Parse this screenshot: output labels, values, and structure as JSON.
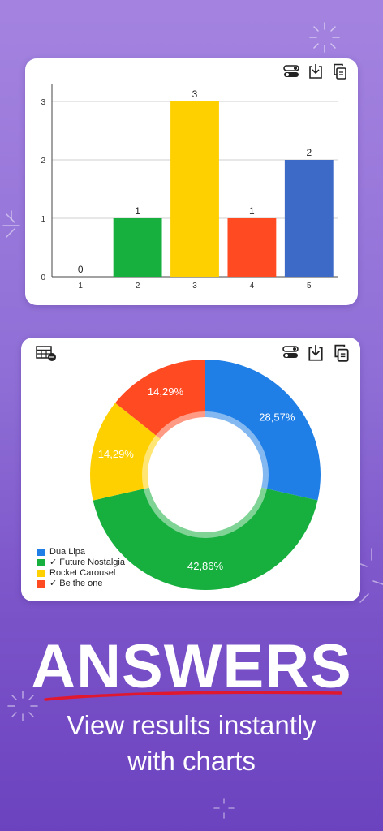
{
  "bar_card": {
    "toolbar_icons": [
      "toggle-icon",
      "download-icon",
      "copy-icon"
    ]
  },
  "pie_card": {
    "toolbar_icons": [
      "table-icon",
      "toggle-icon",
      "download-icon",
      "copy-icon"
    ],
    "legend": [
      {
        "label": "Dua Lipa",
        "color": "#1f7fe6"
      },
      {
        "label": "✓ Future Nostalgia",
        "color": "#17b03f"
      },
      {
        "label": "Rocket Carousel",
        "color": "#ffd000"
      },
      {
        "label": "✓ Be the one",
        "color": "#ff4a22"
      }
    ]
  },
  "headline": "ANSWERS",
  "subtitle_line1": "View results instantly",
  "subtitle_line2": "with charts",
  "chart_data": [
    {
      "type": "bar",
      "categories": [
        "1",
        "2",
        "3",
        "4",
        "5"
      ],
      "values": [
        0,
        1,
        3,
        1,
        2
      ],
      "colors": [
        "#1f7fe6",
        "#17b03f",
        "#ffd000",
        "#ff4a22",
        "#3c6ac6"
      ],
      "yticks": [
        0,
        1,
        2,
        3
      ],
      "ylim": [
        0,
        3
      ],
      "grid": true
    },
    {
      "type": "pie",
      "labels": [
        "Dua Lipa",
        "✓ Future Nostalgia",
        "Rocket Carousel",
        "✓ Be the one"
      ],
      "values": [
        28.57,
        42.86,
        14.29,
        14.29
      ],
      "value_labels": [
        "28,57%",
        "42,86%",
        "14,29%",
        "14,29%"
      ],
      "colors": [
        "#1f7fe6",
        "#17b03f",
        "#ffd000",
        "#ff4a22"
      ],
      "legend_position": "bottom-left"
    }
  ]
}
